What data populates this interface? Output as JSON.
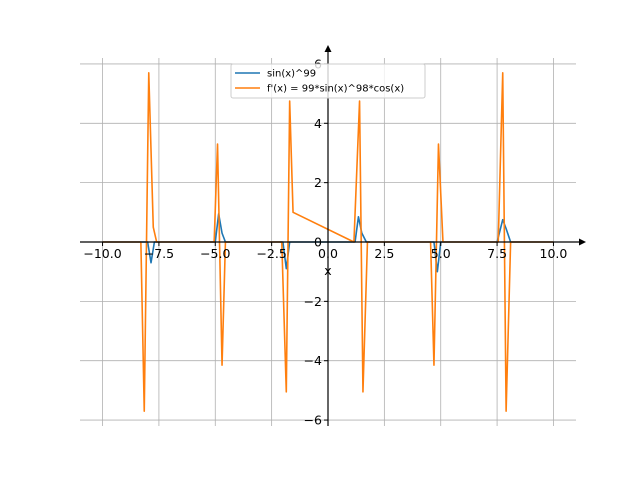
{
  "chart_data": {
    "type": "line",
    "xlabel": "x",
    "ylabel": "",
    "xlim": [
      -11,
      11
    ],
    "ylim": [
      -6.2,
      6.2
    ],
    "grid": true,
    "legend_position": "top-center",
    "x_ticks": [
      -10,
      -7.5,
      -5,
      -2.5,
      0,
      2.5,
      5,
      7.5,
      10
    ],
    "x_tick_labels": [
      "−10.0",
      "−7.5",
      "−5.0",
      "−2.5",
      "0.0",
      "2.5",
      "5.0",
      "7.5",
      "10.0"
    ],
    "y_ticks": [
      -6,
      -4,
      -2,
      0,
      2,
      4,
      6
    ],
    "y_tick_labels": [
      "−6",
      "−4",
      "−2",
      "0",
      "2",
      "4",
      "6"
    ],
    "series": [
      {
        "name": "sin(x)^99",
        "color": "#1f77b4",
        "x": [
          -10,
          -8.0,
          -7.85,
          -7.7,
          -7.5,
          -5.0,
          -4.85,
          -4.7,
          -4.55,
          -2.0,
          -1.85,
          -1.7,
          -1.5,
          1.2,
          1.35,
          1.5,
          1.7,
          1.9,
          4.5,
          4.7,
          4.85,
          5.0,
          7.5,
          7.75,
          7.9,
          8.1,
          8.25,
          10
        ],
        "y": [
          0,
          0,
          -0.7,
          0,
          0,
          0,
          0.95,
          0.3,
          0,
          0,
          -0.9,
          0,
          0,
          0,
          0.85,
          0.3,
          0,
          0,
          0,
          0,
          -1.0,
          0,
          0,
          0.75,
          0.45,
          0,
          0,
          0
        ]
      },
      {
        "name": "f'(x) = 99*sin(x)^98*cos(x)",
        "color": "#ff7f0e",
        "x": [
          -10,
          -8.3,
          -8.15,
          -7.95,
          -7.75,
          -7.6,
          -5.05,
          -4.9,
          -4.7,
          -4.55,
          -2.05,
          -1.85,
          -1.7,
          -1.55,
          1.15,
          1.4,
          1.55,
          1.75,
          4.55,
          4.7,
          4.9,
          5.1,
          7.55,
          7.75,
          7.9,
          8.1,
          10
        ],
        "y": [
          0,
          0,
          -5.7,
          5.7,
          0.5,
          0,
          0,
          3.3,
          -4.15,
          0,
          0,
          -5.05,
          4.75,
          1.0,
          0,
          4.75,
          -5.05,
          0,
          0,
          -4.15,
          3.3,
          0,
          0,
          5.7,
          -5.7,
          0,
          0
        ]
      }
    ]
  }
}
